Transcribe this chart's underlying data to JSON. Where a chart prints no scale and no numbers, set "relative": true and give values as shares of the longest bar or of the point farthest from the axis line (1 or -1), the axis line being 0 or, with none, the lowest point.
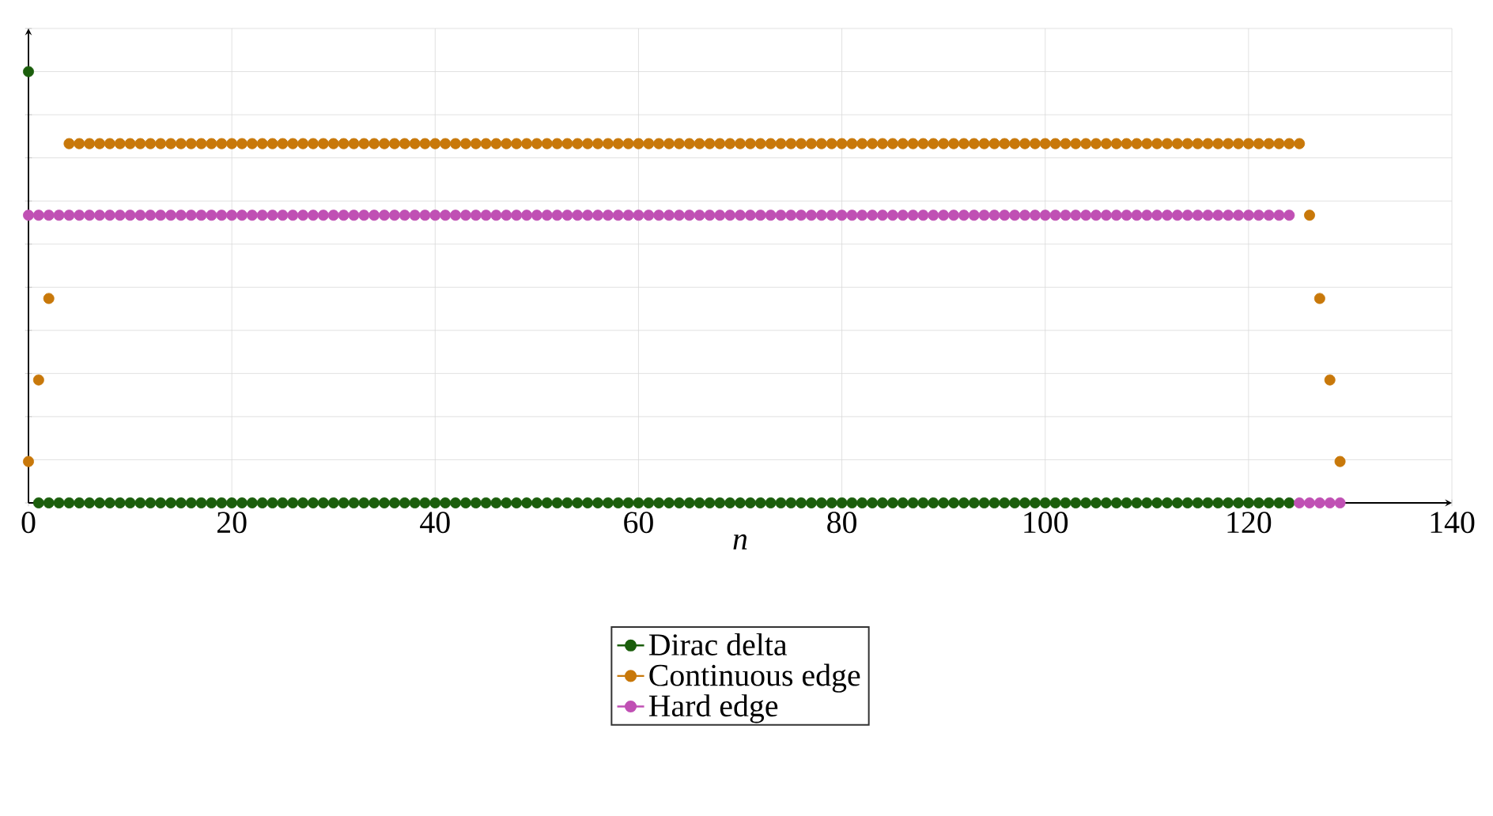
{
  "chart_data": {
    "type": "scatter",
    "relative": true,
    "xlabel": "n",
    "xlim": [
      0,
      140
    ],
    "xticks": [
      0,
      20,
      40,
      60,
      80,
      100,
      120,
      140
    ],
    "grid": true,
    "legend": "bottom",
    "marker": "circle",
    "x": [
      0,
      1,
      2,
      3,
      4,
      5,
      6,
      7,
      8,
      9,
      10,
      11,
      12,
      13,
      14,
      15,
      16,
      17,
      18,
      19,
      20,
      21,
      22,
      23,
      24,
      25,
      26,
      27,
      28,
      29,
      30,
      31,
      32,
      33,
      34,
      35,
      36,
      37,
      38,
      39,
      40,
      41,
      42,
      43,
      44,
      45,
      46,
      47,
      48,
      49,
      50,
      51,
      52,
      53,
      54,
      55,
      56,
      57,
      58,
      59,
      60,
      61,
      62,
      63,
      64,
      65,
      66,
      67,
      68,
      69,
      70,
      71,
      72,
      73,
      74,
      75,
      76,
      77,
      78,
      79,
      80,
      81,
      82,
      83,
      84,
      85,
      86,
      87,
      88,
      89,
      90,
      91,
      92,
      93,
      94,
      95,
      96,
      97,
      98,
      99,
      100,
      101,
      102,
      103,
      104,
      105,
      106,
      107,
      108,
      109,
      110,
      111,
      112,
      113,
      114,
      115,
      116,
      117,
      118,
      119,
      120,
      121,
      122,
      123,
      124,
      125,
      126,
      127,
      128,
      129
    ],
    "series": [
      {
        "name": "Dirac delta",
        "color": "#1b5e0c",
        "values": [
          1,
          0,
          0,
          0,
          0,
          0,
          0,
          0,
          0,
          0,
          0,
          0,
          0,
          0,
          0,
          0,
          0,
          0,
          0,
          0,
          0,
          0,
          0,
          0,
          0,
          0,
          0,
          0,
          0,
          0,
          0,
          0,
          0,
          0,
          0,
          0,
          0,
          0,
          0,
          0,
          0,
          0,
          0,
          0,
          0,
          0,
          0,
          0,
          0,
          0,
          0,
          0,
          0,
          0,
          0,
          0,
          0,
          0,
          0,
          0,
          0,
          0,
          0,
          0,
          0,
          0,
          0,
          0,
          0,
          0,
          0,
          0,
          0,
          0,
          0,
          0,
          0,
          0,
          0,
          0,
          0,
          0,
          0,
          0,
          0,
          0,
          0,
          0,
          0,
          0,
          0,
          0,
          0,
          0,
          0,
          0,
          0,
          0,
          0,
          0,
          0,
          0,
          0,
          0,
          0,
          0,
          0,
          0,
          0,
          0,
          0,
          0,
          0,
          0,
          0,
          0,
          0,
          0,
          0,
          0,
          0,
          0,
          0,
          0,
          0,
          null,
          null,
          null,
          null,
          null
        ]
      },
      {
        "name": "Continuous edge",
        "color": "#c8780a",
        "values": [
          0.096,
          0.285,
          0.474,
          null,
          0.833,
          0.833,
          0.833,
          0.833,
          0.833,
          0.833,
          0.833,
          0.833,
          0.833,
          0.833,
          0.833,
          0.833,
          0.833,
          0.833,
          0.833,
          0.833,
          0.833,
          0.833,
          0.833,
          0.833,
          0.833,
          0.833,
          0.833,
          0.833,
          0.833,
          0.833,
          0.833,
          0.833,
          0.833,
          0.833,
          0.833,
          0.833,
          0.833,
          0.833,
          0.833,
          0.833,
          0.833,
          0.833,
          0.833,
          0.833,
          0.833,
          0.833,
          0.833,
          0.833,
          0.833,
          0.833,
          0.833,
          0.833,
          0.833,
          0.833,
          0.833,
          0.833,
          0.833,
          0.833,
          0.833,
          0.833,
          0.833,
          0.833,
          0.833,
          0.833,
          0.833,
          0.833,
          0.833,
          0.833,
          0.833,
          0.833,
          0.833,
          0.833,
          0.833,
          0.833,
          0.833,
          0.833,
          0.833,
          0.833,
          0.833,
          0.833,
          0.833,
          0.833,
          0.833,
          0.833,
          0.833,
          0.833,
          0.833,
          0.833,
          0.833,
          0.833,
          0.833,
          0.833,
          0.833,
          0.833,
          0.833,
          0.833,
          0.833,
          0.833,
          0.833,
          0.833,
          0.833,
          0.833,
          0.833,
          0.833,
          0.833,
          0.833,
          0.833,
          0.833,
          0.833,
          0.833,
          0.833,
          0.833,
          0.833,
          0.833,
          0.833,
          0.833,
          0.833,
          0.833,
          0.833,
          0.833,
          0.833,
          0.833,
          0.833,
          0.833,
          0.833,
          0.833,
          0.667,
          0.474,
          0.285,
          0.096
        ]
      },
      {
        "name": "Hard edge",
        "color": "#c050b4",
        "values": [
          0.667,
          0.667,
          0.667,
          0.667,
          0.667,
          0.667,
          0.667,
          0.667,
          0.667,
          0.667,
          0.667,
          0.667,
          0.667,
          0.667,
          0.667,
          0.667,
          0.667,
          0.667,
          0.667,
          0.667,
          0.667,
          0.667,
          0.667,
          0.667,
          0.667,
          0.667,
          0.667,
          0.667,
          0.667,
          0.667,
          0.667,
          0.667,
          0.667,
          0.667,
          0.667,
          0.667,
          0.667,
          0.667,
          0.667,
          0.667,
          0.667,
          0.667,
          0.667,
          0.667,
          0.667,
          0.667,
          0.667,
          0.667,
          0.667,
          0.667,
          0.667,
          0.667,
          0.667,
          0.667,
          0.667,
          0.667,
          0.667,
          0.667,
          0.667,
          0.667,
          0.667,
          0.667,
          0.667,
          0.667,
          0.667,
          0.667,
          0.667,
          0.667,
          0.667,
          0.667,
          0.667,
          0.667,
          0.667,
          0.667,
          0.667,
          0.667,
          0.667,
          0.667,
          0.667,
          0.667,
          0.667,
          0.667,
          0.667,
          0.667,
          0.667,
          0.667,
          0.667,
          0.667,
          0.667,
          0.667,
          0.667,
          0.667,
          0.667,
          0.667,
          0.667,
          0.667,
          0.667,
          0.667,
          0.667,
          0.667,
          0.667,
          0.667,
          0.667,
          0.667,
          0.667,
          0.667,
          0.667,
          0.667,
          0.667,
          0.667,
          0.667,
          0.667,
          0.667,
          0.667,
          0.667,
          0.667,
          0.667,
          0.667,
          0.667,
          0.667,
          0.667,
          0.667,
          0.667,
          0.667,
          0.667,
          0,
          0,
          0,
          0,
          0
        ]
      }
    ]
  }
}
